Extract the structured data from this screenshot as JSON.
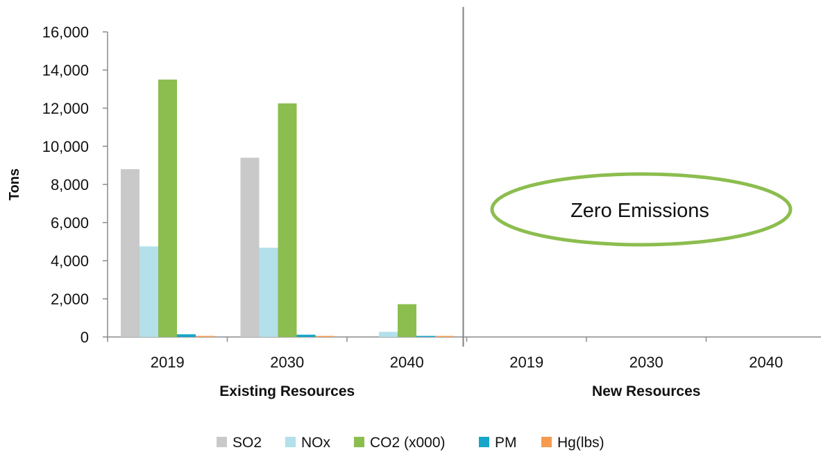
{
  "chart_data": {
    "type": "bar",
    "ylabel": "Tons",
    "ylim": [
      0,
      16000
    ],
    "yticks": [
      "0",
      "2,000",
      "4,000",
      "6,000",
      "8,000",
      "10,000",
      "12,000",
      "14,000",
      "16,000"
    ],
    "grid": false,
    "legend": "bottom",
    "groups": [
      {
        "label": "Existing Resources",
        "categories": [
          "2019",
          "2030",
          "2040"
        ]
      },
      {
        "label": "New Resources",
        "categories": [
          "2019",
          "2030",
          "2040"
        ]
      }
    ],
    "categories": [
      "2019",
      "2030",
      "2040",
      "2019",
      "2030",
      "2040"
    ],
    "series": [
      {
        "name": "SO2",
        "color": "#c9c9c9",
        "values": [
          8800,
          9400,
          0,
          0,
          0,
          0
        ]
      },
      {
        "name": "NOx",
        "color": "#b3e0ea",
        "values": [
          4750,
          4680,
          270,
          0,
          0,
          0
        ]
      },
      {
        "name": "CO2 (x000)",
        "color": "#8cbd4f",
        "values": [
          13500,
          12250,
          1720,
          0,
          0,
          0
        ]
      },
      {
        "name": "PM",
        "color": "#16a6c9",
        "values": [
          140,
          120,
          10,
          0,
          0,
          0
        ]
      },
      {
        "name": "Hg(lbs)",
        "color": "#f59a4f",
        "values": [
          40,
          30,
          5,
          0,
          0,
          0
        ]
      }
    ],
    "annotation": {
      "text": "Zero Emissions",
      "color": "#8cbd4f"
    }
  }
}
